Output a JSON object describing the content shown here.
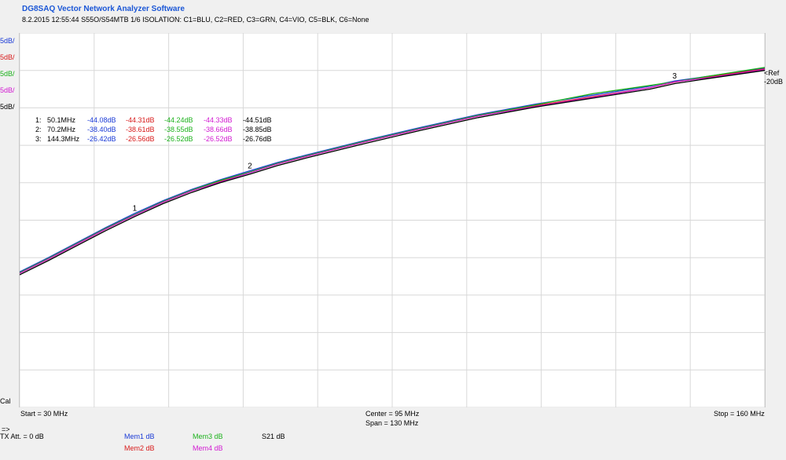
{
  "app": {
    "title": "DG8SAQ Vector Network Analyzer Software",
    "subtitle": "8.2.2015   12:55:44    S55O/S54MTB 1/6 ISOLATION: C1=BLU, C2=RED, C3=GRN, C4=VIO, C5=BLK, C6=None"
  },
  "left_scale_labels": [
    {
      "text": "5dB/",
      "color": "#1a3ad6"
    },
    {
      "text": "5dB/",
      "color": "#d81b1b"
    },
    {
      "text": "5dB/",
      "color": "#1db21d"
    },
    {
      "text": "5dB/",
      "color": "#d21bd2"
    },
    {
      "text": "5dB/",
      "color": "#000000"
    }
  ],
  "ref": {
    "line1": "<Ref",
    "line2": "-20dB"
  },
  "cal_label": "Cal",
  "marker_table": [
    {
      "id": "1:",
      "freq": "50.1MHz",
      "values": [
        "-44.08dB",
        "-44.31dB",
        "-44.24dB",
        "-44.33dB",
        "-44.51dB"
      ]
    },
    {
      "id": "2:",
      "freq": "70.2MHz",
      "values": [
        "-38.40dB",
        "-38.61dB",
        "-38.55dB",
        "-38.66dB",
        "-38.85dB"
      ]
    },
    {
      "id": "3:",
      "freq": "144.3MHz",
      "values": [
        "-26.42dB",
        "-26.56dB",
        "-26.52dB",
        "-26.52dB",
        "-26.76dB"
      ]
    }
  ],
  "bottom": {
    "start": "Start = 30 MHz",
    "center": "Center = 95 MHz",
    "span": "Span = 130 MHz",
    "stop": "Stop = 160 MHz",
    "arrow": "=>",
    "tx_att": "TX Att.  = 0 dB",
    "mem1": "Mem1 dB",
    "mem2": "Mem2 dB",
    "mem3": "Mem3 dB",
    "mem4": "Mem4 dB",
    "s21": "S21    dB"
  },
  "colors": {
    "c1": "#1a3ad6",
    "c2": "#d81b1b",
    "c3": "#1db21d",
    "c4": "#d21bd2",
    "c5": "#000000",
    "grid": "#d8d8d8"
  },
  "chart_data": {
    "type": "line",
    "xlabel": "",
    "ylabel": "",
    "xlim": [
      30,
      160
    ],
    "ylim": [
      -70,
      -20
    ],
    "x_divisions": 10,
    "y_divisions": 10,
    "grid": true,
    "reference_level": -20,
    "scale_per_div": 5,
    "x": [
      30,
      35,
      40,
      45,
      50.1,
      55,
      60,
      65,
      70.2,
      75,
      80,
      90,
      100,
      110,
      120,
      130,
      140,
      144.3,
      150,
      160
    ],
    "series": [
      {
        "name": "C1",
        "color": "#1a3ad6",
        "values": [
          -51.9,
          -50.0,
          -48.0,
          -46.0,
          -44.08,
          -42.4,
          -40.9,
          -39.6,
          -38.4,
          -37.3,
          -36.3,
          -34.4,
          -32.6,
          -30.9,
          -29.5,
          -28.3,
          -27.1,
          -26.42,
          -25.8,
          -24.7
        ]
      },
      {
        "name": "C2",
        "color": "#d81b1b",
        "values": [
          -52.1,
          -50.2,
          -48.2,
          -46.2,
          -44.31,
          -42.6,
          -41.1,
          -39.8,
          -38.61,
          -37.5,
          -36.5,
          -34.6,
          -32.8,
          -31.1,
          -29.7,
          -28.5,
          -27.3,
          -26.56,
          -25.9,
          -24.8
        ]
      },
      {
        "name": "C3",
        "color": "#1db21d",
        "values": [
          -52.0,
          -50.1,
          -48.1,
          -46.1,
          -44.24,
          -42.5,
          -41.0,
          -39.7,
          -38.55,
          -37.4,
          -36.4,
          -34.5,
          -32.7,
          -31.0,
          -29.6,
          -28.1,
          -27.0,
          -26.52,
          -25.8,
          -24.6
        ]
      },
      {
        "name": "C4",
        "color": "#d21bd2",
        "values": [
          -52.1,
          -50.2,
          -48.2,
          -46.2,
          -44.33,
          -42.6,
          -41.1,
          -39.9,
          -38.66,
          -37.5,
          -36.5,
          -34.6,
          -32.8,
          -31.1,
          -29.8,
          -28.6,
          -27.3,
          -26.52,
          -26.0,
          -24.9
        ]
      },
      {
        "name": "C5",
        "color": "#000000",
        "values": [
          -52.3,
          -50.4,
          -48.4,
          -46.4,
          -44.51,
          -42.8,
          -41.3,
          -40.0,
          -38.85,
          -37.7,
          -36.7,
          -34.8,
          -33.0,
          -31.3,
          -29.9,
          -28.7,
          -27.5,
          -26.76,
          -26.1,
          -25.0
        ]
      }
    ],
    "markers": [
      {
        "label": "1",
        "x": 50.1
      },
      {
        "label": "2",
        "x": 70.2
      },
      {
        "label": "3",
        "x": 144.3
      }
    ]
  }
}
